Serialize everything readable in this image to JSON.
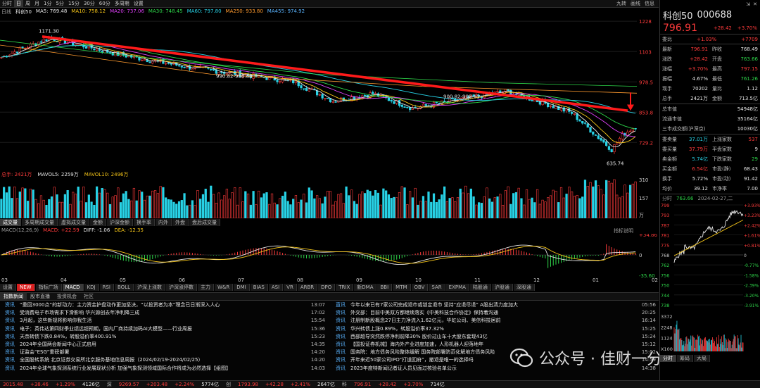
{
  "toolbar": {
    "items": [
      "分时",
      "日",
      "周",
      "月",
      "1分",
      "5分",
      "15分",
      "30分",
      "60分",
      "多周期",
      "设置"
    ],
    "active_index": 1,
    "right_items": [
      "九转",
      "画线",
      "信息"
    ]
  },
  "ma_legend": {
    "title": "日线",
    "items": [
      {
        "label": "科创50",
        "value": "MA5: 769.48",
        "color": "#e6e6e6"
      },
      {
        "label": "MA10: 758.12",
        "color": "#f5c518"
      },
      {
        "label": "MA20: 737.06",
        "color": "#e040fb"
      },
      {
        "label": "MA30: 748.45",
        "color": "#2ed84a"
      },
      {
        "label": "MA60: 797.80",
        "color": "#28d2e6"
      },
      {
        "label": "MA250: 933.80",
        "color": "#ff9a2e"
      },
      {
        "label": "MA455: 974.92",
        "color": "#5ab4ff"
      }
    ]
  },
  "price_chart": {
    "y_ticks": [
      "1228",
      "1103",
      "978.5",
      "853.8",
      "729.2"
    ],
    "annotations": {
      "high": "1171.30",
      "mid1": "990.82-988.88",
      "mid2": "900.82-908.15",
      "low": "635.74"
    }
  },
  "volume_chart": {
    "legend": {
      "label": "总手: 2421万",
      "mavol5": "MAVOL5: 2259万",
      "mavol10": "MAVOL10: 2496万"
    },
    "y_ticks": [
      "310",
      "157",
      "万"
    ]
  },
  "indicator_tabs": [
    "成交量",
    "多周期成交量",
    "虚拟成交量",
    "金额",
    "沪深金额",
    "换手率",
    "内外",
    "外盘",
    "盘后成交量"
  ],
  "macd": {
    "legend": "MACD(12,26,9)",
    "macd": "MACD: +22.59",
    "diff": "DIFF: -1.06",
    "dea": "DEA: -12.35",
    "hint": "指标说明",
    "y_ticks": [
      "+34.86",
      "0",
      "-35.60"
    ],
    "x_months": [
      "03",
      "04",
      "05",
      "06",
      "07",
      "08",
      "09",
      "10",
      "11",
      "12",
      "01",
      "02"
    ]
  },
  "bottom_tabs": [
    "设置",
    "NEW",
    "指标广场",
    "MACD",
    "KDJ",
    "RSI",
    "BOLL",
    "沪深上涨数",
    "沪深涨停数",
    "主力",
    "W&R",
    "DMI",
    "BIAS",
    "ASI",
    "VR",
    "ARBR",
    "DPO",
    "TRIX",
    "新DMA",
    "BBI",
    "MTM",
    "OBV",
    "SAR",
    "EXPMA",
    "陆股通",
    "沪股通",
    "深股通"
  ],
  "news": {
    "tabs": [
      "指数新闻",
      "股市直播",
      "投资机会",
      "社区"
    ],
    "left": [
      {
        "tag": "资讯",
        "title": "“重回3000点”的新动力：主力资金护盘动作更加坚决，“以投资者为本”理念已日渐深入人心",
        "time": "13:07"
      },
      {
        "tag": "资讯",
        "title": "受消费电子市场需求下滑影响 华兴源创去年净利降三成",
        "time": "17:02"
      },
      {
        "tag": "资讯",
        "title": "3月起，这些新规将影响你我生活",
        "time": "15:54"
      },
      {
        "tag": "资讯",
        "title": "电子：英伟达第四财季业绩远超预期，国内厂商持续加码AI大模型——行业周报",
        "time": "15:36"
      },
      {
        "tag": "资讯",
        "title": "天奈转债下跌0.84%，转股溢价率400.91%",
        "time": "15:23"
      },
      {
        "tag": "资讯",
        "title": "2024年全国两会新闻中心正式启用",
        "time": "14:35"
      },
      {
        "tag": "资讯",
        "title": "证监会“ESG”重磅部署",
        "time": "14:20"
      },
      {
        "tag": "资讯",
        "title": "全国股转系统 北京证券交易所北京服务基地信息周报（2024/02/19-2024/02/25）",
        "time": "14:20"
      },
      {
        "tag": "资讯",
        "title": "2024年全球气象探测系统行业发展现状分析 加强气象探测领域国际合作将成为必然选择【组图】",
        "time": "14:03"
      }
    ],
    "right": [
      {
        "tag": "直讯",
        "title": "今年以来已有7家公司完成退市或锁定退市 坚持“应退尽退” A股出清力度加大",
        "time": "05:56"
      },
      {
        "tag": "资讯",
        "title": "外交部：目前中美双方都继续落实《中美科技合作协定》保持着沟通",
        "time": "20:25"
      },
      {
        "tag": "资讯",
        "title": "注册制新股概念27日主力净流入1.62亿元，华虹公司、美信科技居前",
        "time": "16:14"
      },
      {
        "tag": "资讯",
        "title": "华兴转债上涨0.89%，转股溢价率37.32%",
        "time": "15:25"
      },
      {
        "tag": "资讯",
        "title": "西部超导突然跌停净利前降30% 股价过山车十大股东套现43亿",
        "time": "15:24"
      },
      {
        "tag": "资讯",
        "title": "【国投证券机械】海内外产业进度加速，人形机器人迎落地年",
        "time": "15:12"
      },
      {
        "tag": "资讯",
        "title": "国务院：地方债务风险整体缓解 国务院部署防范化解地方债务风险",
        "time": "15:02"
      },
      {
        "tag": "资讯",
        "title": "开年来近50家公司IPO“打道回府”，撤退是唯一的选择吗",
        "time": "14:59"
      },
      {
        "tag": "资讯",
        "title": "2023年度特新闻记者证人员见面过核验名单公示",
        "time": "14:38"
      }
    ]
  },
  "quote": {
    "name": "科创50",
    "code": "000688",
    "price": "796.91",
    "change": "+28.42",
    "change_pct": "+3.70%",
    "weibi_label": "委比",
    "weibi": "+1.03%",
    "weicha": "+7709",
    "rows": [
      {
        "l1": "最新",
        "v1": "796.91",
        "l2": "昨收",
        "v2": "768.49"
      },
      {
        "l1": "涨跌",
        "v1": "+28.42",
        "l2": "开盘",
        "v2": "763.66"
      },
      {
        "l1": "涨幅",
        "v1": "+3.70%",
        "l2": "最高",
        "v2": "797.15"
      },
      {
        "l1": "振幅",
        "v1": "4.67%",
        "l2": "最低",
        "v2": "761.26"
      },
      {
        "l1": "现手",
        "v1": "70202",
        "l2": "量比",
        "v2": "1.12"
      },
      {
        "l1": "总手",
        "v1": "2421万",
        "l2": "金额",
        "v2": "713.5亿"
      }
    ],
    "rows2": [
      {
        "l": "总市值",
        "v": "54948亿"
      },
      {
        "l": "流通市值",
        "v": "35164亿"
      },
      {
        "l": "三市成交额(沪深京)",
        "v": "10030亿"
      }
    ],
    "rows3": [
      {
        "l1": "委卖量",
        "v1": "37.01万",
        "l2": "上涨家数",
        "v2": "537"
      },
      {
        "l1": "委买量",
        "v1": "37.79万",
        "l2": "平盘家数",
        "v2": "9"
      },
      {
        "l1": "卖金额",
        "v1": "5.74亿",
        "l2": "下跌家数",
        "v2": "29"
      },
      {
        "l1": "买金额",
        "v1": "6.54亿",
        "l2": "市盈(静)",
        "v2": "68.43"
      },
      {
        "l1": "换手",
        "v1": "5.72%",
        "l2": "市盈(动)",
        "v2": "91.42"
      },
      {
        "l1": "均价",
        "v1": "39.12",
        "l2": "市净率",
        "v2": "7.00"
      }
    ],
    "intraday_header": {
      "label": "分时",
      "price": "763.66",
      "date": "2024-02-27,二"
    },
    "intraday_left_ticks": [
      "799",
      "793",
      "787",
      "781",
      "775",
      "768",
      "762",
      "756",
      "750",
      "744",
      "738"
    ],
    "intraday_right_ticks": [
      "+3.93%",
      "+3.23%",
      "+2.42%",
      "+1.61%",
      "+0.81%",
      "0",
      "-0.77%",
      "-1.58%",
      "-2.39%",
      "-3.20%",
      "-3.91%"
    ],
    "vol_ticks": [
      "3372",
      "2248",
      "1124",
      "X100"
    ],
    "bottom_tabs": [
      "分时",
      "筹码",
      "大局"
    ]
  },
  "status_bar": {
    "items": [
      {
        "text": "3015.48",
        "color": "#ff3b3b"
      },
      {
        "text": "+38.46",
        "color": "#ff3b3b"
      },
      {
        "text": "+1.29%",
        "color": "#ff3b3b"
      },
      {
        "text": "4126亿",
        "color": "#e6e6e6"
      },
      {
        "text": "深",
        "color": "#bbb"
      },
      {
        "text": "9269.57",
        "color": "#ff3b3b"
      },
      {
        "text": "+203.48",
        "color": "#ff3b3b"
      },
      {
        "text": "+2.24%",
        "color": "#ff3b3b"
      },
      {
        "text": "5774亿",
        "color": "#e6e6e6"
      },
      {
        "text": "创",
        "color": "#bbb"
      },
      {
        "text": "1793.98",
        "color": "#ff3b3b"
      },
      {
        "text": "+42.28",
        "color": "#ff3b3b"
      },
      {
        "text": "+2.41%",
        "color": "#ff3b3b"
      },
      {
        "text": "2647亿",
        "color": "#e6e6e6"
      },
      {
        "text": "科",
        "color": "#bbb"
      },
      {
        "text": "796.91",
        "color": "#ff3b3b"
      },
      {
        "text": "+28.42",
        "color": "#ff3b3b"
      },
      {
        "text": "+3.70%",
        "color": "#ff3b3b"
      },
      {
        "text": "714亿",
        "color": "#e6e6e6"
      }
    ]
  },
  "watermark": {
    "text": "公众号 · 佳财一分钟",
    "icon": "wechat-icon"
  }
}
